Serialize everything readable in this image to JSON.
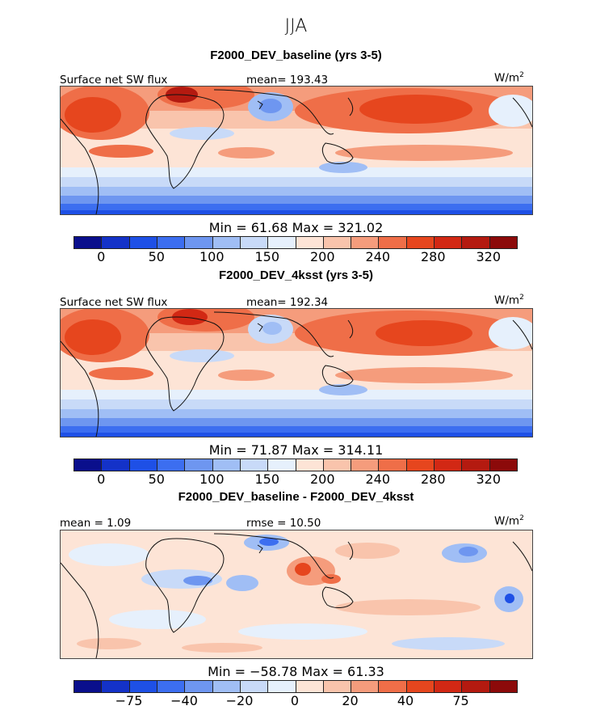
{
  "header": {
    "season": "JJA"
  },
  "colors": {
    "palette": [
      "#0a0f8c",
      "#1432c8",
      "#1e50e6",
      "#3c6ef0",
      "#6e96f0",
      "#a0bef5",
      "#c8daf8",
      "#e6f0fc",
      "#fde4d6",
      "#f9c4ac",
      "#f59c7c",
      "#ef6e48",
      "#e6461e",
      "#d22814",
      "#b41a10",
      "#8c0a0a"
    ]
  },
  "chart_data": [
    {
      "type": "heatmap",
      "title": "F2000_DEV_baseline (yrs 3-5)",
      "variable_label": "Surface net SW flux",
      "mean_text": "mean= 193.43",
      "units": "W/m",
      "units_sup": "2",
      "min_max_text": "Min =   61.68  Max =  321.02",
      "min": 61.68,
      "max": 321.02,
      "mean": 193.43,
      "colorbar_ticks": [
        "0",
        "50",
        "100",
        "150",
        "200",
        "240",
        "280",
        "320"
      ]
    },
    {
      "type": "heatmap",
      "title": "F2000_DEV_4ksst (yrs 3-5)",
      "variable_label": "Surface net SW flux",
      "mean_text": "mean= 192.34",
      "units": "W/m",
      "units_sup": "2",
      "min_max_text": "Min =   71.87  Max =  314.11",
      "min": 71.87,
      "max": 314.11,
      "mean": 192.34,
      "colorbar_ticks": [
        "0",
        "50",
        "100",
        "150",
        "200",
        "240",
        "280",
        "320"
      ]
    },
    {
      "type": "heatmap",
      "title": "F2000_DEV_baseline - F2000_DEV_4ksst",
      "mean_text": "mean =    1.09",
      "rmse_text": "rmse =  10.50",
      "units": "W/m",
      "units_sup": "2",
      "min_max_text": "Min =  −58.78  Max =   61.33",
      "min": -58.78,
      "max": 61.33,
      "mean": 1.09,
      "rmse": 10.5,
      "colorbar_ticks": [
        "−75",
        "−40",
        "−20",
        "0",
        "20",
        "40",
        "75"
      ]
    }
  ]
}
